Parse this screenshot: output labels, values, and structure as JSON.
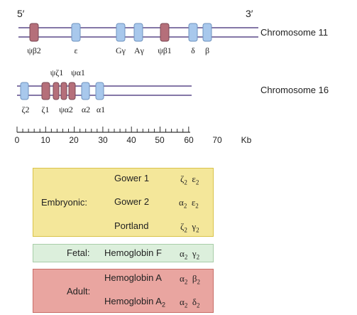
{
  "chromosome_11": {
    "end_5": "5′",
    "end_3": "3′",
    "label": "Chromosome 11",
    "genes": [
      "ψβ2",
      "ε",
      "Gγ",
      "Aγ",
      "ψβ1",
      "δ",
      "β"
    ]
  },
  "chromosome_16": {
    "label": "Chromosome 16",
    "top_labels": [
      "ψζ1",
      "ψα1"
    ],
    "bottom_labels": [
      "ζ2",
      "ζ1",
      "ψα2",
      "α2",
      "α1"
    ]
  },
  "scale": {
    "ticks": [
      "0",
      "10",
      "20",
      "30",
      "40",
      "50",
      "60",
      "70"
    ],
    "unit": "Kb"
  },
  "colors": {
    "gene": "#a8c8ec",
    "pseudogene": "#b56f7a",
    "line": "#5b4a8a",
    "embryonic_fill": "#f4e79a",
    "embryonic_border": "#d9c34a",
    "fetal_fill": "#dcefdc",
    "fetal_border": "#a8cda8",
    "adult_fill": "#e9a5a0",
    "adult_border": "#c86e68"
  },
  "hemoglobins": {
    "embryonic": {
      "stage": "Embryonic:",
      "rows": [
        {
          "name": "Gower 1",
          "c1": "ζ",
          "s1": "2",
          "c2": "ε",
          "s2": "2"
        },
        {
          "name": "Gower 2",
          "c1": "α",
          "s1": "2",
          "c2": "ε",
          "s2": "2"
        },
        {
          "name": "Portland",
          "c1": "ζ",
          "s1": "2",
          "c2": "γ",
          "s2": "2"
        }
      ]
    },
    "fetal": {
      "stage": "Fetal:",
      "name": "Hemoglobin F",
      "c1": "α",
      "s1": "2",
      "c2": "γ",
      "s2": "2"
    },
    "adult": {
      "stage": "Adult:",
      "row1": {
        "name": "Hemoglobin A",
        "c1": "α",
        "s1": "2",
        "c2": "β",
        "s2": "2"
      },
      "row2": {
        "name": "Hemoglobin A",
        "name_sub": "2",
        "c1": "α",
        "s1": "2",
        "c2": "δ",
        "s2": "2"
      }
    }
  }
}
